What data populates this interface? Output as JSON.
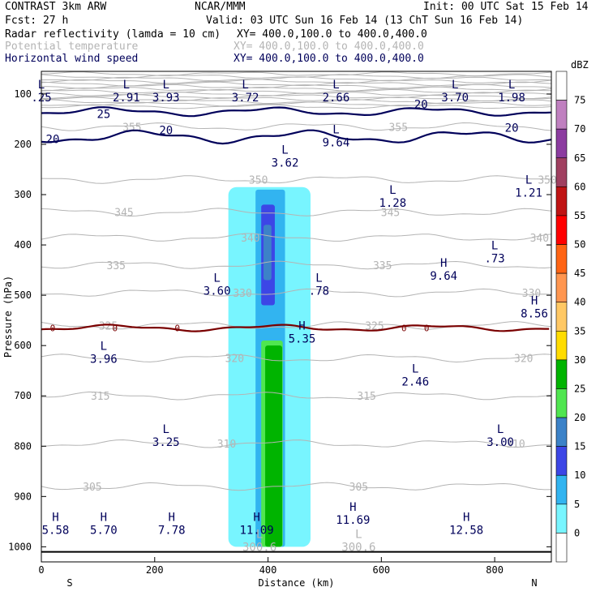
{
  "header": {
    "title_left": "CONTRAST  3km ARW",
    "center_org": "NCAR/MMM",
    "init": "Init: 00 UTC Sat 15 Feb 14",
    "fcst": "Fcst:   27 h",
    "valid": "Valid: 03 UTC Sun 16 Feb 14 (13 ChT Sun 16 Feb 14)",
    "legend": [
      {
        "name": "Radar reflectivity (lamda = 10 cm)",
        "xy": "XY= 400.0,100.0 to 400.0,400.0",
        "color": "#000000"
      },
      {
        "name": "Potential temperature",
        "xy": "XY= 400.0,100.0 to 400.0,400.0",
        "color": "#b4b4b4"
      },
      {
        "name": "Horizontal wind speed",
        "xy": "XY= 400.0,100.0 to 400.0,400.0",
        "color": "#00005a"
      }
    ]
  },
  "chart_data": {
    "type": "cross-section",
    "xlabel": "Distance (km)",
    "ylabel": "Pressure (hPa)",
    "xlim": [
      0,
      900
    ],
    "ylim": [
      1030,
      55
    ],
    "x_ticks": [
      0,
      200,
      400,
      600,
      800
    ],
    "y_ticks": [
      100,
      200,
      300,
      400,
      500,
      600,
      700,
      800,
      900,
      1000
    ],
    "x_end_labels": {
      "left": "S",
      "right": "N"
    },
    "colorbar": {
      "unit": "dBZ",
      "levels": [
        75,
        70,
        65,
        60,
        55,
        50,
        45,
        40,
        35,
        30,
        25,
        20,
        15,
        10,
        5,
        0
      ],
      "colors": [
        "#ffffff",
        "#c080c0",
        "#8c3ca0",
        "#a04060",
        "#c01414",
        "#ff0000",
        "#ff6414",
        "#ff9650",
        "#ffc864",
        "#ffdc00",
        "#00b400",
        "#50e650",
        "#3c82c8",
        "#3c46e6",
        "#32b4f0",
        "#78f5ff",
        "#ffffff"
      ]
    },
    "reflectivity_regions": [
      {
        "dbz": 5,
        "desc": "anvil and column",
        "x_range": [
          330,
          475
        ],
        "p_range": [
          285,
          1000
        ]
      },
      {
        "dbz": 10,
        "desc": "column",
        "x_range": [
          378,
          430
        ],
        "p_range": [
          290,
          1000
        ]
      },
      {
        "dbz": 15,
        "desc": "upper core",
        "x_range": [
          388,
          412
        ],
        "p_range": [
          320,
          520
        ]
      },
      {
        "dbz": 20,
        "desc": "upper core",
        "x_range": [
          392,
          406
        ],
        "p_range": [
          360,
          470
        ]
      },
      {
        "dbz": 25,
        "desc": "low-level core",
        "x_range": [
          388,
          426
        ],
        "p_range": [
          590,
          1000
        ]
      },
      {
        "dbz": 30,
        "desc": "rain shaft",
        "x_range": [
          395,
          425
        ],
        "p_range": [
          600,
          1000
        ]
      }
    ],
    "theta_contours": [
      {
        "label": "305",
        "pressure": 880
      },
      {
        "label": "310",
        "pressure": 795
      },
      {
        "label": "315",
        "pressure": 700
      },
      {
        "label": "320",
        "pressure": 625
      },
      {
        "label": "325",
        "pressure": 560
      },
      {
        "label": "330",
        "pressure": 495
      },
      {
        "label": "335",
        "pressure": 440
      },
      {
        "label": "340",
        "pressure": 385
      },
      {
        "label": "345",
        "pressure": 335
      },
      {
        "label": "350",
        "pressure": 270
      },
      {
        "label": "355",
        "pressure": 165
      }
    ],
    "freezing_line_label": "0",
    "freezing_level_hPa": 565,
    "wind_contours": [
      "20",
      "25"
    ],
    "extrema": [
      {
        "type": "L",
        "value": ".25",
        "x": 0,
        "p": 95
      },
      {
        "type": "L",
        "value": "2.91",
        "x": 150,
        "p": 95
      },
      {
        "type": "L",
        "value": "3.93",
        "x": 220,
        "p": 95
      },
      {
        "type": "L",
        "value": "3.72",
        "x": 360,
        "p": 95
      },
      {
        "type": "L",
        "value": "2.66",
        "x": 520,
        "p": 95
      },
      {
        "type": "L",
        "value": "3.70",
        "x": 730,
        "p": 95
      },
      {
        "type": "L",
        "value": "1.98",
        "x": 830,
        "p": 95
      },
      {
        "type": "L",
        "value": "9.64",
        "x": 520,
        "p": 185
      },
      {
        "type": "L",
        "value": "3.62",
        "x": 430,
        "p": 225
      },
      {
        "type": "L",
        "value": "1.28",
        "x": 620,
        "p": 305
      },
      {
        "type": "L",
        "value": "1.21",
        "x": 860,
        "p": 285
      },
      {
        "type": "L",
        "value": "3.60",
        "x": 310,
        "p": 480
      },
      {
        "type": "L",
        "value": ".78",
        "x": 490,
        "p": 480
      },
      {
        "type": "H",
        "value": "9.64",
        "x": 710,
        "p": 450
      },
      {
        "type": "L",
        "value": ".73",
        "x": 800,
        "p": 415
      },
      {
        "type": "H",
        "value": "8.56",
        "x": 870,
        "p": 525
      },
      {
        "type": "H",
        "value": "5.35",
        "x": 460,
        "p": 575
      },
      {
        "type": "L",
        "value": "3.96",
        "x": 110,
        "p": 615
      },
      {
        "type": "L",
        "value": "2.46",
        "x": 660,
        "p": 660
      },
      {
        "type": "L",
        "value": "3.25",
        "x": 220,
        "p": 780
      },
      {
        "type": "L",
        "value": "3.00",
        "x": 810,
        "p": 780
      },
      {
        "type": "H",
        "value": "5.58",
        "x": 25,
        "p": 955
      },
      {
        "type": "H",
        "value": "5.70",
        "x": 110,
        "p": 955
      },
      {
        "type": "H",
        "value": "7.78",
        "x": 230,
        "p": 955
      },
      {
        "type": "H",
        "value": "11.09",
        "x": 380,
        "p": 955
      },
      {
        "type": "H",
        "value": "11.69",
        "x": 550,
        "p": 935
      },
      {
        "type": "H",
        "value": "12.58",
        "x": 750,
        "p": 955
      }
    ],
    "gray_extrema": [
      {
        "type": "L",
        "value": "300.6",
        "x": 385,
        "p": 995
      },
      {
        "type": "L",
        "value": "300.6",
        "x": 560,
        "p": 995
      }
    ]
  }
}
